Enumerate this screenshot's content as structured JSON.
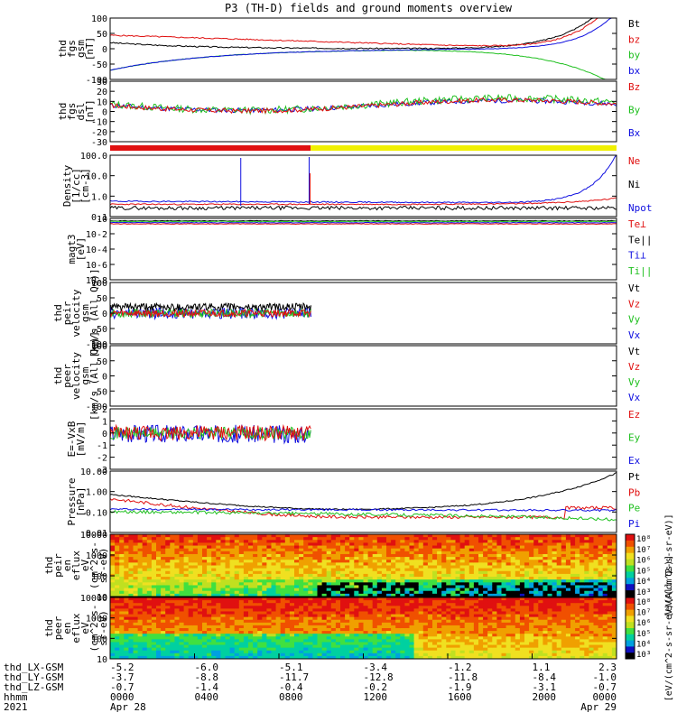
{
  "title": "P3 (TH-D) fields and ground moments overview",
  "colors": {
    "black": "#000000",
    "red": "#e01010",
    "green": "#20c020",
    "blue": "#1010e0",
    "yellow": "#f0f000"
  },
  "chart_data": [
    {
      "type": "line",
      "ylabel": [
        "thd",
        "fgs",
        "gsm",
        "[nT]"
      ],
      "ylim": [
        -100,
        100
      ],
      "yticks": [
        "100",
        "50",
        "0",
        "-50",
        "-100"
      ],
      "legend": [
        {
          "name": "Bt",
          "color": "black"
        },
        {
          "name": "bz",
          "color": "red"
        },
        {
          "name": "by",
          "color": "green"
        },
        {
          "name": "bx",
          "color": "blue"
        }
      ]
    },
    {
      "type": "line",
      "ylabel": [
        "thd",
        "fgs",
        "dsl",
        "[nT]"
      ],
      "ylim": [
        -30,
        30
      ],
      "yticks": [
        "30",
        "20",
        "10",
        "0",
        "-10",
        "-20",
        "-30"
      ],
      "legend": [
        {
          "name": "Bz",
          "color": "red"
        },
        {
          "name": "By",
          "color": "green"
        },
        {
          "name": "Bx",
          "color": "blue"
        }
      ]
    },
    {
      "type": "line",
      "ylabel": [
        "Density",
        "[1/cc]",
        "[cm-3]"
      ],
      "ylog": true,
      "yticks": [
        "100.0",
        "10.0",
        "1.0",
        "0.1"
      ],
      "legend": [
        {
          "name": "Ne",
          "color": "red"
        },
        {
          "name": "Ni",
          "color": "black"
        },
        {
          "name": "Npot",
          "color": "blue"
        }
      ]
    },
    {
      "type": "line",
      "ylabel": [
        "magt3",
        "[eV]"
      ],
      "ylog": true,
      "yticks": [
        "10",
        "10-2",
        "10-4",
        "10-6",
        "10-8"
      ],
      "legend": [
        {
          "name": "Te⊥",
          "color": "red"
        },
        {
          "name": "Te||",
          "color": "black"
        },
        {
          "name": "Ti⊥",
          "color": "blue"
        },
        {
          "name": "Ti||",
          "color": "green"
        }
      ]
    },
    {
      "type": "line",
      "ylabel": [
        "thd",
        "peir",
        "velocity",
        "gsm",
        "[km/s (All Qs)]"
      ],
      "ylim": [
        -100,
        100
      ],
      "yticks": [
        "100",
        "50",
        "0",
        "-50",
        "-100"
      ],
      "legend": [
        {
          "name": "Vt",
          "color": "black"
        },
        {
          "name": "Vz",
          "color": "red"
        },
        {
          "name": "Vy",
          "color": "green"
        },
        {
          "name": "Vx",
          "color": "blue"
        }
      ]
    },
    {
      "type": "line",
      "ylabel": [
        "thd",
        "peer",
        "velocity",
        "gsm",
        "[km/s (All Qs)]"
      ],
      "ylim": [
        -100,
        100
      ],
      "yticks": [
        "100",
        "50",
        "0",
        "-50",
        "-100"
      ],
      "legend": [
        {
          "name": "Vt",
          "color": "black"
        },
        {
          "name": "Vz",
          "color": "red"
        },
        {
          "name": "Vy",
          "color": "green"
        },
        {
          "name": "Vx",
          "color": "blue"
        }
      ]
    },
    {
      "type": "line",
      "ylabel": [
        "E=-VxB",
        "[mV/m]"
      ],
      "ylim": [
        -3,
        2
      ],
      "yticks": [
        "2",
        "1",
        "0",
        "-1",
        "-2",
        "-3"
      ],
      "legend": [
        {
          "name": "Ez",
          "color": "red"
        },
        {
          "name": "Ey",
          "color": "green"
        },
        {
          "name": "Ex",
          "color": "blue"
        }
      ]
    },
    {
      "type": "line",
      "ylabel": [
        "Pressure",
        "[nPa]"
      ],
      "ylog": true,
      "yticks": [
        "10.00",
        "1.00",
        "0.10",
        "0.01"
      ],
      "legend": [
        {
          "name": "Pt",
          "color": "black"
        },
        {
          "name": "Pb",
          "color": "red"
        },
        {
          "name": "Pe",
          "color": "green"
        },
        {
          "name": "Pi",
          "color": "blue"
        }
      ]
    },
    {
      "type": "heatmap",
      "ylabel": [
        "thd",
        "peir",
        "en",
        "eflux",
        "eV",
        "(cm^2-s-",
        "sr-eV)"
      ],
      "ylog": true,
      "yticks": [
        "10000",
        "1000",
        "100",
        "10"
      ],
      "colorbar": {
        "ticks": [
          "10⁸",
          "10⁷",
          "10⁶",
          "10⁵",
          "10⁴",
          "10³"
        ],
        "label": "[eV/(cm^2-s-sr-eV)]"
      }
    },
    {
      "type": "heatmap",
      "ylabel": [
        "thd",
        "peer",
        "en",
        "eflux",
        "eV",
        "(cm^2-s-",
        "sr-eV)"
      ],
      "ylog": true,
      "yticks": [
        "10000",
        "1000",
        "100",
        "10"
      ],
      "colorbar": {
        "ticks": [
          "10⁸",
          "10⁷",
          "10⁶",
          "10⁵",
          "10⁴",
          "10³"
        ],
        "label": "[eV/(cm^2-s-sr-eV)(All Qs)]"
      }
    }
  ],
  "xaxis": {
    "rows": [
      {
        "label": "thd_LX-GSM",
        "values": [
          "-5.2",
          "-6.0",
          "-5.1",
          "-3.4",
          "-1.2",
          "1.1",
          "2.3"
        ]
      },
      {
        "label": "thd_LY-GSM",
        "values": [
          "-3.7",
          "-8.8",
          "-11.7",
          "-12.8",
          "-11.8",
          "-8.4",
          "-1.0"
        ]
      },
      {
        "label": "thd_LZ-GSM",
        "values": [
          "-0.7",
          "-1.4",
          "-0.4",
          "-0.2",
          "-1.9",
          "-3.1",
          "-0.7"
        ]
      },
      {
        "label": "hhmm",
        "values": [
          "0000",
          "0400",
          "0800",
          "1200",
          "1600",
          "2000",
          "0000"
        ]
      },
      {
        "label": "2021",
        "values": [
          "Apr 28",
          "",
          "",
          "",
          "",
          "",
          "Apr 29"
        ]
      }
    ]
  },
  "status_bar": {
    "segments": [
      {
        "color": "red",
        "from_hour": 0,
        "to_hour": 9.5
      },
      {
        "color": "yellow",
        "from_hour": 9.5,
        "to_hour": 24
      }
    ]
  }
}
